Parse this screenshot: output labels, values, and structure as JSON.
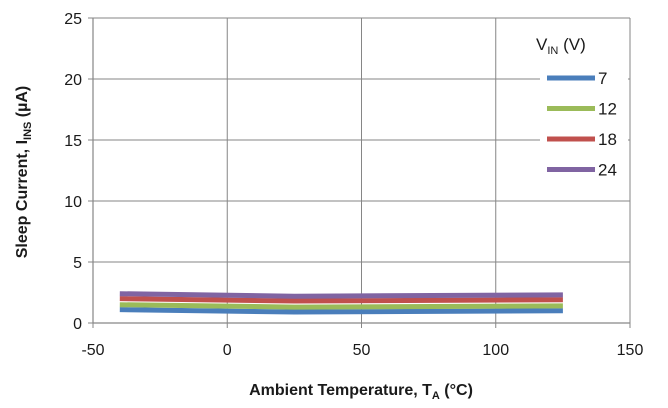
{
  "chart_data": {
    "type": "line",
    "xlabel": {
      "main": "Ambient Temperature, T",
      "sub": "A",
      "unit": " (°C)"
    },
    "ylabel": {
      "main": "Sleep Current, I",
      "sub": "INS",
      "unit": " (µA)"
    },
    "xlim": [
      -50,
      150
    ],
    "ylim": [
      0,
      25
    ],
    "xticks": [
      -50,
      0,
      50,
      100,
      150
    ],
    "yticks": [
      0,
      5,
      10,
      15,
      20,
      25
    ],
    "grid": true,
    "legend": {
      "title": {
        "main": "V",
        "sub": "IN",
        "unit": " (V)"
      },
      "placement": "top-right"
    },
    "x": [
      -40,
      25,
      125
    ],
    "series": [
      {
        "name": "7",
        "color": "#4a7ebb",
        "values": [
          1.1,
          0.9,
          1.0
        ]
      },
      {
        "name": "12",
        "color": "#9bbb59",
        "values": [
          1.5,
          1.3,
          1.4
        ]
      },
      {
        "name": "18",
        "color": "#c0504d",
        "values": [
          2.0,
          1.8,
          1.9
        ]
      },
      {
        "name": "24",
        "color": "#8064a2",
        "values": [
          2.4,
          2.2,
          2.3
        ]
      }
    ]
  }
}
